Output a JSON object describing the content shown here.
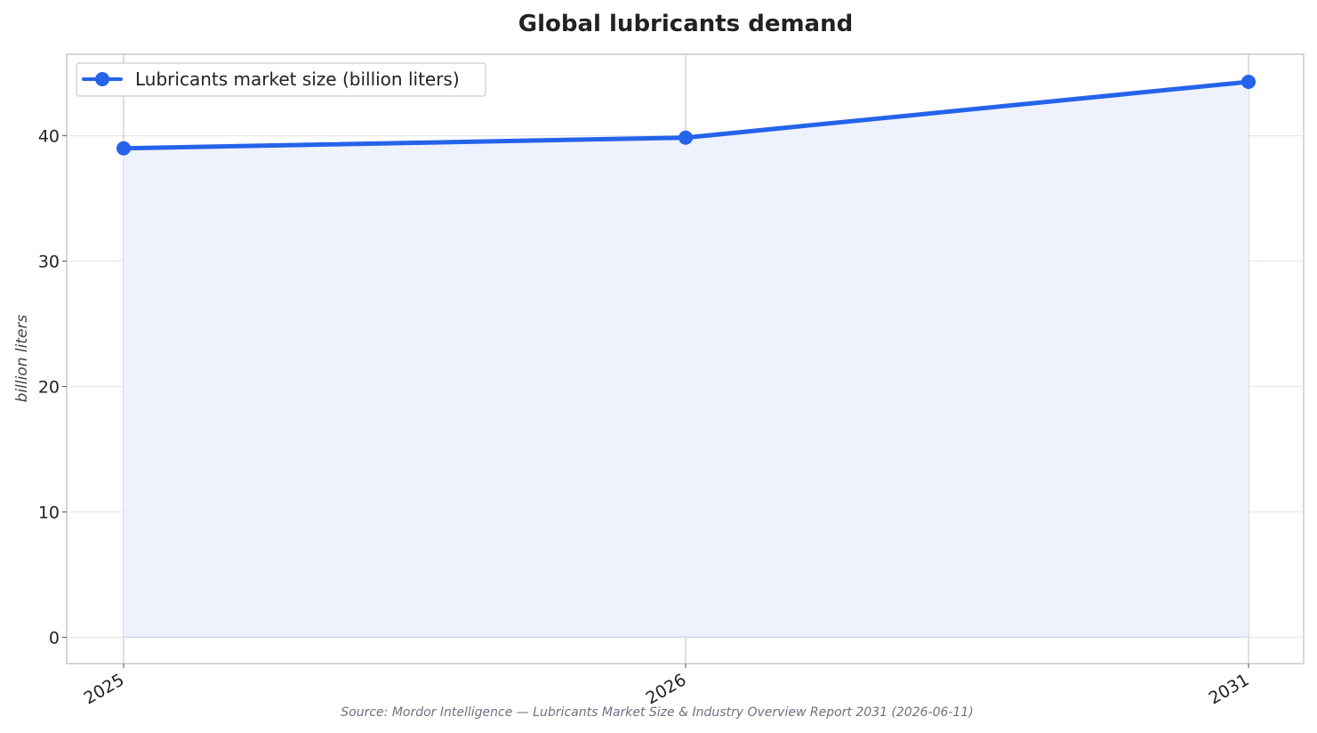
{
  "chart_data": {
    "type": "area",
    "title": "Global lubricants demand",
    "ylabel": "billion liters",
    "xlabel": "",
    "categories": [
      "2025",
      "2026",
      "2031"
    ],
    "series": [
      {
        "name": "Lubricants market size (billion liters)",
        "values": [
          39.0,
          39.85,
          44.3
        ],
        "color": "#2563eb",
        "fill_color": "#edf2fc"
      }
    ],
    "ylim": [
      -2.1,
      46.5
    ],
    "yticks": [
      0,
      10,
      20,
      30,
      40
    ],
    "grid": true,
    "legend_position": "top-left",
    "source": "Source: Mordor Intelligence — Lubricants Market Size & Industry Overview Report 2031 (2026-06-11)"
  }
}
